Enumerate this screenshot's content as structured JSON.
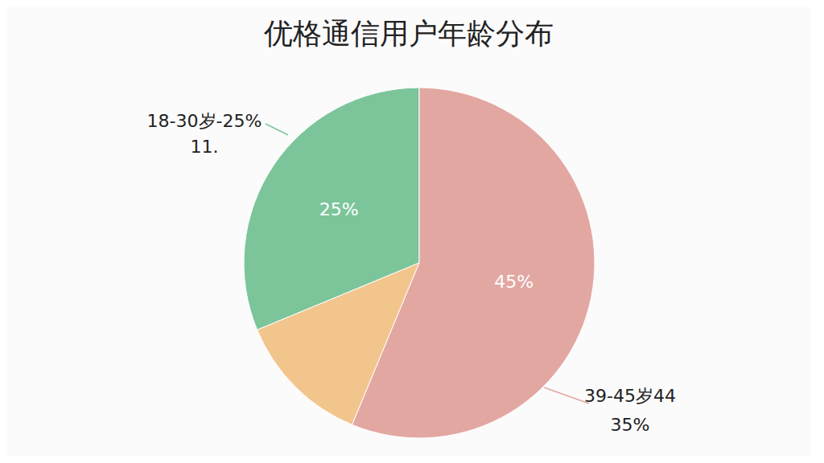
{
  "chart_data": {
    "type": "pie",
    "title": "优格通信用户年龄分布",
    "values": [
      25,
      10,
      45
    ],
    "colors": [
      "#7cc59b",
      "#f2c58c",
      "#e3a7a2"
    ],
    "value_labels": [
      "25%",
      null,
      "45%"
    ],
    "data_labels": true,
    "annotations": [
      [
        "18-30岁-25%",
        "11."
      ],
      [
        "39-45岁44",
        "35%"
      ]
    ]
  }
}
